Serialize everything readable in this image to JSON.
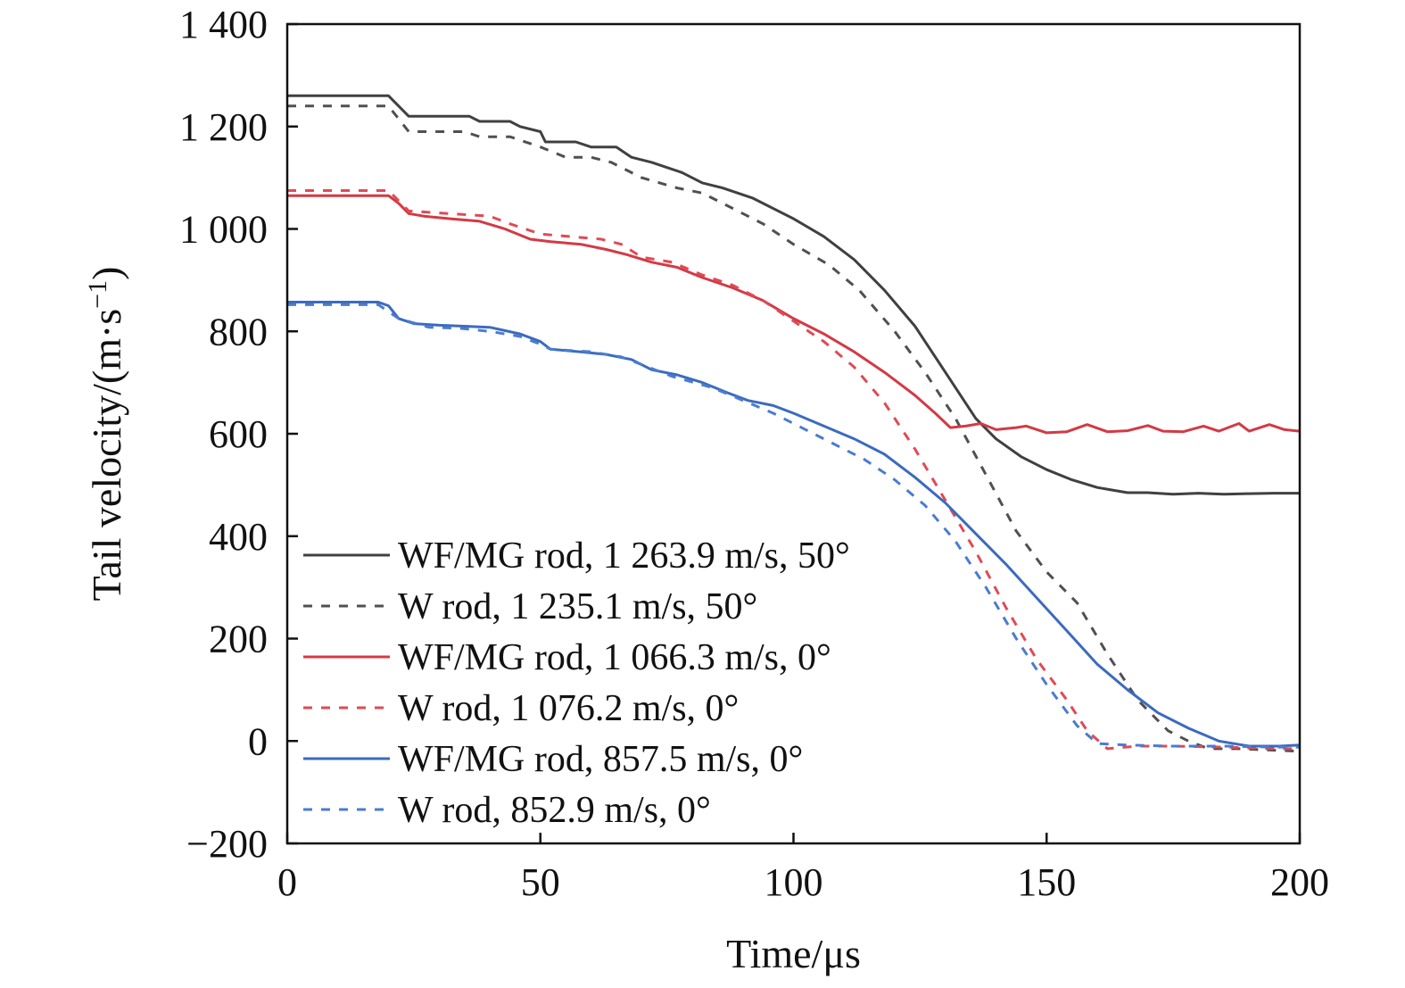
{
  "chart_data": {
    "type": "line",
    "xlabel": "Time/μs",
    "ylabel_base": "Tail velocity/(m·s",
    "ylabel_sup": "−1",
    "ylabel_close": ")",
    "xlim": [
      0,
      200
    ],
    "ylim": [
      -200,
      1400
    ],
    "xticks": [
      0,
      50,
      100,
      150,
      200
    ],
    "yticks": [
      -200,
      0,
      200,
      400,
      600,
      800,
      1000,
      1200,
      1400
    ],
    "xtick_labels": [
      "0",
      "50",
      "100",
      "150",
      "200"
    ],
    "ytick_labels": [
      "−200",
      "0",
      "200",
      "400",
      "600",
      "800",
      "1 000",
      "1 200",
      "1 400"
    ],
    "grid": false,
    "legend_position": "bottom-left",
    "series": [
      {
        "name": "WF/MG rod, 1 263.9 m/s, 50°",
        "color": "#404040",
        "dash": "solid",
        "points": [
          [
            0,
            1260
          ],
          [
            20,
            1260
          ],
          [
            24,
            1220
          ],
          [
            36,
            1220
          ],
          [
            38,
            1210
          ],
          [
            44,
            1210
          ],
          [
            46,
            1200
          ],
          [
            50,
            1190
          ],
          [
            51,
            1170
          ],
          [
            57,
            1170
          ],
          [
            60,
            1160
          ],
          [
            65,
            1160
          ],
          [
            68,
            1140
          ],
          [
            72,
            1130
          ],
          [
            78,
            1110
          ],
          [
            82,
            1090
          ],
          [
            86,
            1080
          ],
          [
            92,
            1060
          ],
          [
            100,
            1020
          ],
          [
            106,
            985
          ],
          [
            112,
            940
          ],
          [
            118,
            880
          ],
          [
            124,
            810
          ],
          [
            130,
            720
          ],
          [
            136,
            630
          ],
          [
            140,
            590
          ],
          [
            145,
            555
          ],
          [
            150,
            530
          ],
          [
            155,
            510
          ],
          [
            160,
            495
          ],
          [
            163,
            490
          ],
          [
            166,
            485
          ],
          [
            170,
            485
          ],
          [
            175,
            482
          ],
          [
            180,
            484
          ],
          [
            185,
            482
          ],
          [
            190,
            483
          ],
          [
            195,
            484
          ],
          [
            200,
            484
          ]
        ]
      },
      {
        "name": "W rod, 1 235.1 m/s, 50°",
        "color": "#505050",
        "dash": "dashed",
        "points": [
          [
            0,
            1240
          ],
          [
            20,
            1240
          ],
          [
            24,
            1190
          ],
          [
            35,
            1190
          ],
          [
            38,
            1180
          ],
          [
            44,
            1180
          ],
          [
            50,
            1160
          ],
          [
            55,
            1140
          ],
          [
            60,
            1140
          ],
          [
            64,
            1130
          ],
          [
            70,
            1100
          ],
          [
            77,
            1080
          ],
          [
            82,
            1070
          ],
          [
            88,
            1040
          ],
          [
            94,
            1010
          ],
          [
            100,
            970
          ],
          [
            107,
            930
          ],
          [
            113,
            880
          ],
          [
            120,
            800
          ],
          [
            126,
            720
          ],
          [
            132,
            630
          ],
          [
            138,
            520
          ],
          [
            144,
            410
          ],
          [
            150,
            330
          ],
          [
            156,
            270
          ],
          [
            162,
            170
          ],
          [
            168,
            80
          ],
          [
            174,
            20
          ],
          [
            178,
            0
          ],
          [
            182,
            -15
          ],
          [
            188,
            -15
          ],
          [
            195,
            -18
          ],
          [
            200,
            -20
          ]
        ]
      },
      {
        "name": "WF/MG rod, 1 066.3 m/s, 0°",
        "color": "#d33a45",
        "dash": "solid",
        "points": [
          [
            0,
            1065
          ],
          [
            20,
            1065
          ],
          [
            22,
            1050
          ],
          [
            24,
            1030
          ],
          [
            27,
            1025
          ],
          [
            32,
            1020
          ],
          [
            38,
            1015
          ],
          [
            43,
            1000
          ],
          [
            48,
            980
          ],
          [
            52,
            975
          ],
          [
            58,
            970
          ],
          [
            63,
            960
          ],
          [
            67,
            950
          ],
          [
            72,
            935
          ],
          [
            77,
            925
          ],
          [
            82,
            905
          ],
          [
            88,
            885
          ],
          [
            94,
            860
          ],
          [
            100,
            825
          ],
          [
            106,
            795
          ],
          [
            112,
            760
          ],
          [
            118,
            720
          ],
          [
            124,
            675
          ],
          [
            128,
            640
          ],
          [
            131,
            612
          ],
          [
            134,
            615
          ],
          [
            137,
            620
          ],
          [
            140,
            608
          ],
          [
            144,
            612
          ],
          [
            146,
            615
          ],
          [
            150,
            602
          ],
          [
            154,
            604
          ],
          [
            158,
            618
          ],
          [
            162,
            604
          ],
          [
            166,
            606
          ],
          [
            170,
            616
          ],
          [
            173,
            605
          ],
          [
            177,
            604
          ],
          [
            181,
            615
          ],
          [
            184,
            605
          ],
          [
            188,
            620
          ],
          [
            190,
            605
          ],
          [
            194,
            618
          ],
          [
            197,
            608
          ],
          [
            200,
            605
          ]
        ]
      },
      {
        "name": "W rod, 1 076.2 m/s, 0°",
        "color": "#e04a55",
        "dash": "dashed",
        "points": [
          [
            0,
            1075
          ],
          [
            20,
            1075
          ],
          [
            24,
            1035
          ],
          [
            32,
            1030
          ],
          [
            40,
            1025
          ],
          [
            44,
            1010
          ],
          [
            50,
            990
          ],
          [
            56,
            985
          ],
          [
            62,
            980
          ],
          [
            66,
            970
          ],
          [
            70,
            945
          ],
          [
            76,
            935
          ],
          [
            82,
            910
          ],
          [
            88,
            890
          ],
          [
            94,
            860
          ],
          [
            100,
            820
          ],
          [
            106,
            780
          ],
          [
            112,
            730
          ],
          [
            118,
            660
          ],
          [
            124,
            570
          ],
          [
            130,
            470
          ],
          [
            136,
            370
          ],
          [
            142,
            260
          ],
          [
            148,
            160
          ],
          [
            154,
            80
          ],
          [
            158,
            20
          ],
          [
            162,
            -15
          ],
          [
            168,
            -10
          ],
          [
            175,
            -10
          ],
          [
            185,
            -12
          ],
          [
            195,
            -15
          ],
          [
            200,
            -15
          ]
        ]
      },
      {
        "name": "WF/MG rod, 857.5 m/s, 0°",
        "color": "#3b6bbf",
        "dash": "solid",
        "points": [
          [
            0,
            857
          ],
          [
            18,
            857
          ],
          [
            20,
            850
          ],
          [
            22,
            825
          ],
          [
            25,
            815
          ],
          [
            30,
            812
          ],
          [
            35,
            810
          ],
          [
            40,
            808
          ],
          [
            46,
            795
          ],
          [
            50,
            780
          ],
          [
            52,
            765
          ],
          [
            58,
            760
          ],
          [
            63,
            755
          ],
          [
            68,
            745
          ],
          [
            72,
            725
          ],
          [
            77,
            715
          ],
          [
            82,
            700
          ],
          [
            87,
            680
          ],
          [
            91,
            665
          ],
          [
            96,
            655
          ],
          [
            100,
            640
          ],
          [
            106,
            615
          ],
          [
            112,
            590
          ],
          [
            118,
            560
          ],
          [
            124,
            515
          ],
          [
            130,
            465
          ],
          [
            136,
            405
          ],
          [
            142,
            345
          ],
          [
            148,
            280
          ],
          [
            154,
            215
          ],
          [
            160,
            150
          ],
          [
            166,
            100
          ],
          [
            172,
            55
          ],
          [
            178,
            25
          ],
          [
            184,
            0
          ],
          [
            190,
            -10
          ],
          [
            196,
            -10
          ],
          [
            200,
            -8
          ]
        ]
      },
      {
        "name": "W rod, 852.9 m/s, 0°",
        "color": "#4a7cd0",
        "dash": "dashed",
        "points": [
          [
            0,
            852
          ],
          [
            18,
            852
          ],
          [
            22,
            825
          ],
          [
            28,
            808
          ],
          [
            34,
            806
          ],
          [
            40,
            800
          ],
          [
            46,
            790
          ],
          [
            50,
            775
          ],
          [
            52,
            765
          ],
          [
            60,
            760
          ],
          [
            66,
            750
          ],
          [
            70,
            735
          ],
          [
            76,
            712
          ],
          [
            84,
            690
          ],
          [
            90,
            665
          ],
          [
            96,
            640
          ],
          [
            102,
            610
          ],
          [
            108,
            580
          ],
          [
            114,
            550
          ],
          [
            120,
            510
          ],
          [
            126,
            460
          ],
          [
            132,
            390
          ],
          [
            138,
            300
          ],
          [
            144,
            200
          ],
          [
            150,
            110
          ],
          [
            156,
            30
          ],
          [
            160,
            -5
          ],
          [
            166,
            -8
          ],
          [
            175,
            -10
          ],
          [
            185,
            -10
          ],
          [
            195,
            -12
          ],
          [
            200,
            -12
          ]
        ]
      }
    ]
  }
}
